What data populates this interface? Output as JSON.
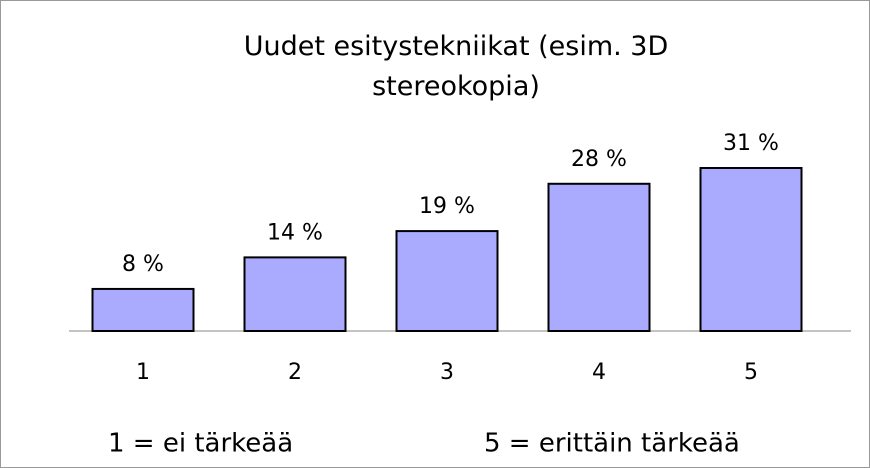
{
  "chart_data": {
    "type": "bar",
    "title": "Uudet esitystekniikat (esim. 3D stereokopia)",
    "categories": [
      "1",
      "2",
      "3",
      "4",
      "5"
    ],
    "values": [
      8,
      14,
      19,
      28,
      31
    ],
    "value_labels": [
      "8 %",
      "14 %",
      "19 %",
      "28 %",
      "31 %"
    ],
    "color": "#aaaaff",
    "annotations": [
      "1 = ei tärkeää",
      "5 = erittäin tärkeää"
    ]
  }
}
